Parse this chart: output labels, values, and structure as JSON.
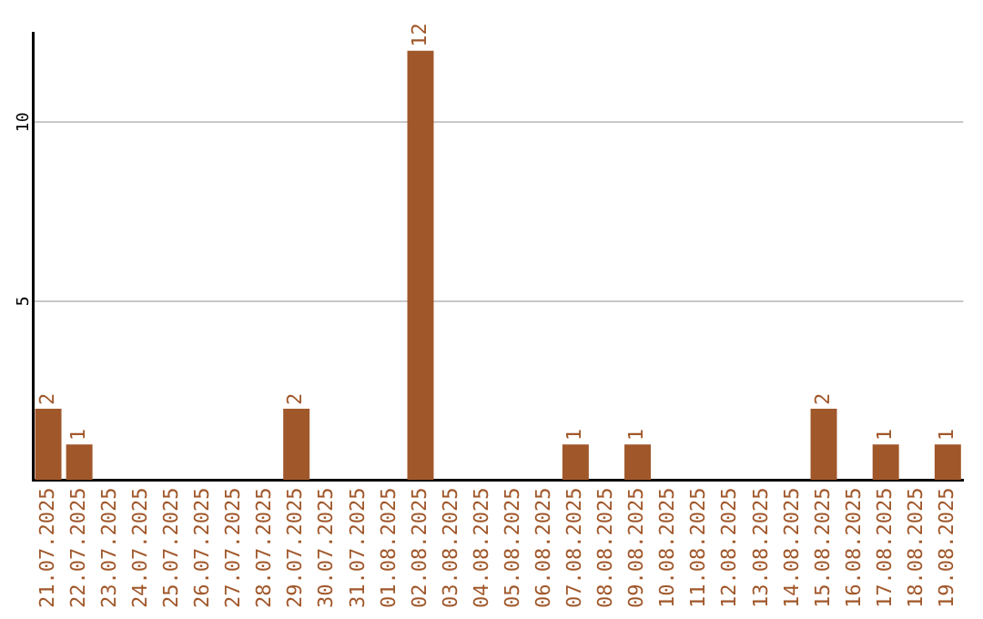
{
  "chart_data": {
    "type": "bar",
    "categories": [
      "21.07.2025",
      "22.07.2025",
      "23.07.2025",
      "24.07.2025",
      "25.07.2025",
      "26.07.2025",
      "27.07.2025",
      "28.07.2025",
      "29.07.2025",
      "30.07.2025",
      "31.07.2025",
      "01.08.2025",
      "02.08.2025",
      "03.08.2025",
      "04.08.2025",
      "05.08.2025",
      "06.08.2025",
      "07.08.2025",
      "08.08.2025",
      "09.08.2025",
      "10.08.2025",
      "11.08.2025",
      "12.08.2025",
      "13.08.2025",
      "14.08.2025",
      "15.08.2025",
      "16.08.2025",
      "17.08.2025",
      "18.08.2025",
      "19.08.2025"
    ],
    "values": [
      2,
      1,
      0,
      0,
      0,
      0,
      0,
      0,
      2,
      0,
      0,
      0,
      12,
      0,
      0,
      0,
      0,
      1,
      0,
      1,
      0,
      0,
      0,
      0,
      0,
      2,
      0,
      1,
      0,
      1
    ],
    "value_labels": [
      "2",
      "1",
      null,
      null,
      null,
      null,
      null,
      null,
      "2",
      null,
      null,
      null,
      "12",
      null,
      null,
      null,
      null,
      "1",
      null,
      "1",
      null,
      null,
      null,
      null,
      null,
      "2",
      null,
      "1",
      null,
      "1"
    ],
    "color": "#a0572a",
    "ylim": [
      0,
      12.5
    ],
    "yticks": [
      5,
      10
    ],
    "grid": "y",
    "legend": false
  }
}
